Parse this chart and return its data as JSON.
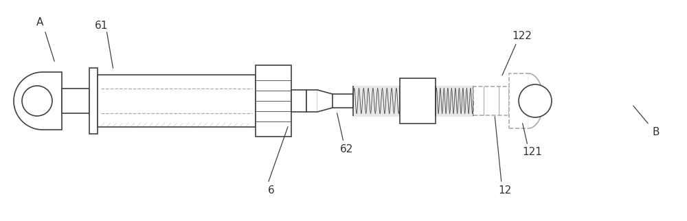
{
  "bg_color": "#ffffff",
  "line_color": "#404040",
  "dashed_color": "#aaaaaa",
  "spring_color": "#cccccc",
  "fig_width": 10.0,
  "fig_height": 3.22,
  "dpi": 100
}
